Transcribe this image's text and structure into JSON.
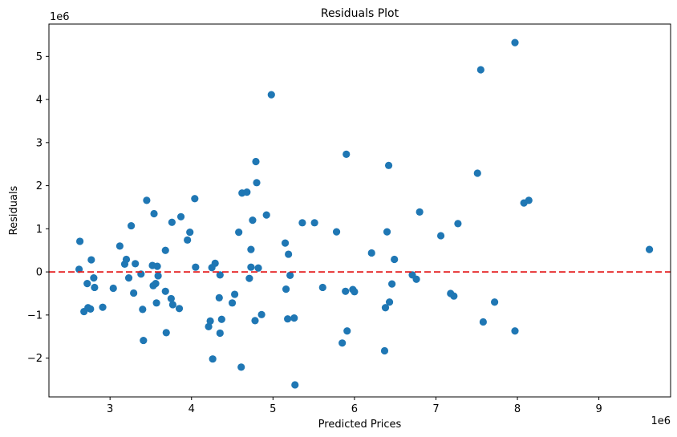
{
  "chart_data": {
    "type": "scatter",
    "title": "Residuals Plot",
    "xlabel": "Predicted Prices",
    "ylabel": "Residuals",
    "x_offset_label": "1e6",
    "y_offset_label": "1e6",
    "xlim": [
      2.25,
      9.88
    ],
    "ylim": [
      -2.9,
      5.75
    ],
    "xticks": [
      3,
      4,
      5,
      6,
      7,
      8,
      9
    ],
    "yticks": [
      -2,
      -1,
      0,
      1,
      2,
      3,
      4,
      5
    ],
    "ytick_labels": [
      "−2",
      "−1",
      "0",
      "1",
      "2",
      "3",
      "4",
      "5"
    ],
    "grid": false,
    "point_color": "#1f77b4",
    "reference_line": {
      "y": 0,
      "color": "#e41a1c",
      "style": "dashed"
    },
    "points": [
      [
        2.62,
        0.06
      ],
      [
        2.63,
        0.71
      ],
      [
        2.68,
        -0.92
      ],
      [
        2.72,
        -0.27
      ],
      [
        2.73,
        -0.83
      ],
      [
        2.76,
        -0.86
      ],
      [
        2.77,
        0.28
      ],
      [
        2.8,
        -0.14
      ],
      [
        2.81,
        -0.36
      ],
      [
        2.91,
        -0.82
      ],
      [
        3.04,
        -0.38
      ],
      [
        3.12,
        0.6
      ],
      [
        3.18,
        0.18
      ],
      [
        3.2,
        0.29
      ],
      [
        3.23,
        -0.14
      ],
      [
        3.26,
        1.07
      ],
      [
        3.29,
        -0.49
      ],
      [
        3.31,
        0.19
      ],
      [
        3.38,
        -0.05
      ],
      [
        3.4,
        -0.87
      ],
      [
        3.41,
        -1.59
      ],
      [
        3.45,
        1.66
      ],
      [
        3.52,
        0.15
      ],
      [
        3.53,
        -0.32
      ],
      [
        3.54,
        1.35
      ],
      [
        3.56,
        -0.27
      ],
      [
        3.57,
        -0.72
      ],
      [
        3.58,
        0.13
      ],
      [
        3.59,
        -0.09
      ],
      [
        3.68,
        0.5
      ],
      [
        3.68,
        -0.45
      ],
      [
        3.69,
        -1.41
      ],
      [
        3.75,
        -0.62
      ],
      [
        3.76,
        1.15
      ],
      [
        3.77,
        -0.76
      ],
      [
        3.85,
        -0.85
      ],
      [
        3.87,
        1.28
      ],
      [
        3.95,
        0.74
      ],
      [
        3.98,
        0.92
      ],
      [
        4.04,
        1.7
      ],
      [
        4.05,
        0.11
      ],
      [
        4.21,
        -1.27
      ],
      [
        4.23,
        -1.14
      ],
      [
        4.25,
        0.1
      ],
      [
        4.26,
        -2.02
      ],
      [
        4.29,
        0.2
      ],
      [
        4.34,
        -0.6
      ],
      [
        4.35,
        -0.07
      ],
      [
        4.35,
        -1.42
      ],
      [
        4.37,
        -1.1
      ],
      [
        4.5,
        -0.72
      ],
      [
        4.53,
        -0.52
      ],
      [
        4.58,
        0.92
      ],
      [
        4.61,
        -2.21
      ],
      [
        4.62,
        1.83
      ],
      [
        4.68,
        1.85
      ],
      [
        4.71,
        -0.15
      ],
      [
        4.73,
        0.52
      ],
      [
        4.73,
        0.11
      ],
      [
        4.75,
        1.2
      ],
      [
        4.78,
        -1.13
      ],
      [
        4.79,
        2.56
      ],
      [
        4.8,
        2.07
      ],
      [
        4.82,
        0.09
      ],
      [
        4.86,
        -0.99
      ],
      [
        4.92,
        1.32
      ],
      [
        4.98,
        4.11
      ],
      [
        5.15,
        0.67
      ],
      [
        5.16,
        -0.4
      ],
      [
        5.18,
        -1.09
      ],
      [
        5.19,
        0.41
      ],
      [
        5.21,
        -0.08
      ],
      [
        5.26,
        -1.07
      ],
      [
        5.27,
        -2.62
      ],
      [
        5.36,
        1.14
      ],
      [
        5.51,
        1.14
      ],
      [
        5.61,
        -0.36
      ],
      [
        5.78,
        0.93
      ],
      [
        5.85,
        -1.65
      ],
      [
        5.89,
        -0.45
      ],
      [
        5.9,
        2.73
      ],
      [
        5.91,
        -1.37
      ],
      [
        5.98,
        -0.41
      ],
      [
        6.0,
        -0.46
      ],
      [
        6.21,
        0.44
      ],
      [
        6.37,
        -1.83
      ],
      [
        6.38,
        -0.83
      ],
      [
        6.4,
        0.93
      ],
      [
        6.42,
        2.47
      ],
      [
        6.43,
        -0.7
      ],
      [
        6.46,
        -0.28
      ],
      [
        6.49,
        0.29
      ],
      [
        6.71,
        -0.07
      ],
      [
        6.76,
        -0.17
      ],
      [
        6.8,
        1.39
      ],
      [
        7.06,
        0.84
      ],
      [
        7.18,
        -0.5
      ],
      [
        7.22,
        -0.56
      ],
      [
        7.27,
        1.12
      ],
      [
        7.51,
        2.29
      ],
      [
        7.55,
        4.69
      ],
      [
        7.58,
        -1.16
      ],
      [
        7.72,
        -0.7
      ],
      [
        7.97,
        5.32
      ],
      [
        7.97,
        -1.37
      ],
      [
        8.08,
        1.6
      ],
      [
        8.14,
        1.66
      ],
      [
        9.62,
        0.52
      ]
    ]
  }
}
